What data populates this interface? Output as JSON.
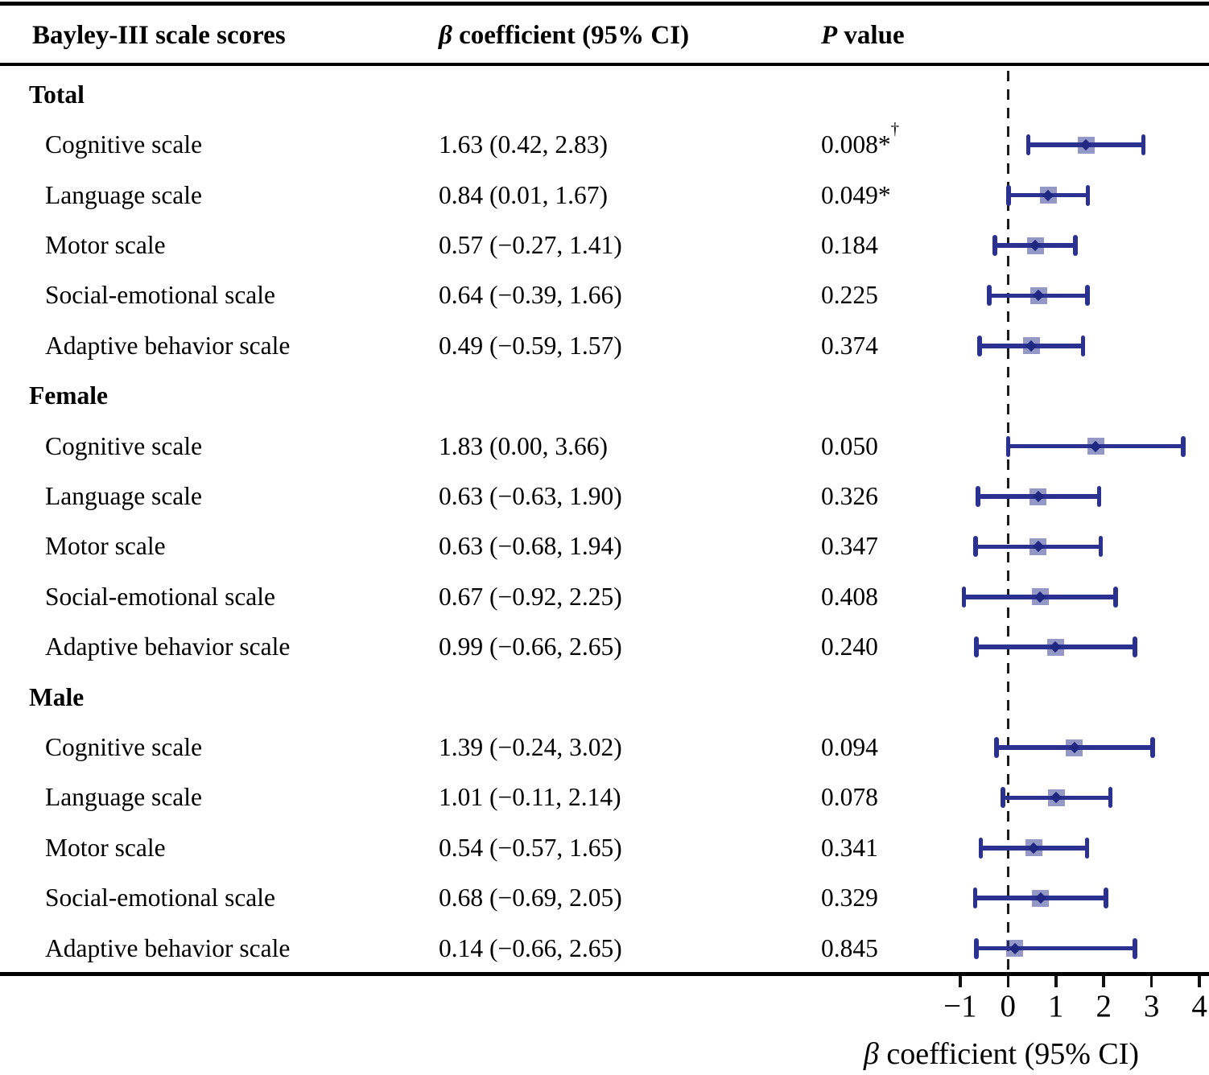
{
  "header": {
    "col1": "Bayley-III scale scores",
    "col2_italic": "β",
    "col2_rest": " coefficient (95% CI)",
    "col3_italic": "P",
    "col3_rest": " value"
  },
  "axis": {
    "label_italic": "β",
    "label_rest": " coefficient (95% CI)"
  },
  "colors": {
    "bar": "#2a3190",
    "marker_fill": "rgba(42,49,144,0.5)",
    "marker_core": "#1f2780",
    "axis": "#111111",
    "zero_line": "#1c1c1c"
  },
  "chart_data": {
    "type": "forest",
    "xlabel": "β coefficient (95% CI)",
    "zero_line": 0,
    "xlim": [
      -1.7,
      4.2
    ],
    "x_ticks": [
      {
        "v": -1,
        "label": "−1"
      },
      {
        "v": 0,
        "label": "0"
      },
      {
        "v": 1,
        "label": "1"
      },
      {
        "v": 2,
        "label": "2"
      },
      {
        "v": 3,
        "label": "3"
      },
      {
        "v": 4,
        "label": "4"
      }
    ],
    "groups": [
      {
        "label": "Total",
        "rows": [
          {
            "label": "Cognitive scale",
            "ci_text": "1.63 (0.42, 2.83)",
            "p": "0.008*",
            "p_sup": "†",
            "est": 1.63,
            "lo": 0.42,
            "hi": 2.83
          },
          {
            "label": "Language scale",
            "ci_text": "0.84 (0.01, 1.67)",
            "p": "0.049*",
            "p_sup": "",
            "est": 0.84,
            "lo": 0.01,
            "hi": 1.67
          },
          {
            "label": "Motor scale",
            "ci_text": "0.57 (−0.27, 1.41)",
            "p": "0.184",
            "p_sup": "",
            "est": 0.57,
            "lo": -0.27,
            "hi": 1.41
          },
          {
            "label": "Social-emotional scale",
            "ci_text": "0.64 (−0.39, 1.66)",
            "p": "0.225",
            "p_sup": "",
            "est": 0.64,
            "lo": -0.39,
            "hi": 1.66
          },
          {
            "label": "Adaptive behavior scale",
            "ci_text": "0.49 (−0.59, 1.57)",
            "p": "0.374",
            "p_sup": "",
            "est": 0.49,
            "lo": -0.59,
            "hi": 1.57
          }
        ]
      },
      {
        "label": "Female",
        "rows": [
          {
            "label": "Cognitive scale",
            "ci_text": "1.83 (0.00, 3.66)",
            "p": "0.050",
            "p_sup": "",
            "est": 1.83,
            "lo": 0.0,
            "hi": 3.66
          },
          {
            "label": "Language scale",
            "ci_text": "0.63 (−0.63, 1.90)",
            "p": "0.326",
            "p_sup": "",
            "est": 0.63,
            "lo": -0.63,
            "hi": 1.9
          },
          {
            "label": "Motor scale",
            "ci_text": "0.63 (−0.68, 1.94)",
            "p": "0.347",
            "p_sup": "",
            "est": 0.63,
            "lo": -0.68,
            "hi": 1.94
          },
          {
            "label": "Social-emotional scale",
            "ci_text": "0.67 (−0.92, 2.25)",
            "p": "0.408",
            "p_sup": "",
            "est": 0.67,
            "lo": -0.92,
            "hi": 2.25
          },
          {
            "label": "Adaptive behavior scale",
            "ci_text": "0.99 (−0.66, 2.65)",
            "p": "0.240",
            "p_sup": "",
            "est": 0.99,
            "lo": -0.66,
            "hi": 2.65
          }
        ]
      },
      {
        "label": "Male",
        "rows": [
          {
            "label": "Cognitive scale",
            "ci_text": "1.39 (−0.24, 3.02)",
            "p": "0.094",
            "p_sup": "",
            "est": 1.39,
            "lo": -0.24,
            "hi": 3.02
          },
          {
            "label": "Language scale",
            "ci_text": "1.01 (−0.11, 2.14)",
            "p": "0.078",
            "p_sup": "",
            "est": 1.01,
            "lo": -0.11,
            "hi": 2.14
          },
          {
            "label": "Motor scale",
            "ci_text": "0.54 (−0.57, 1.65)",
            "p": "0.341",
            "p_sup": "",
            "est": 0.54,
            "lo": -0.57,
            "hi": 1.65
          },
          {
            "label": "Social-emotional scale",
            "ci_text": "0.68 (−0.69, 2.05)",
            "p": "0.329",
            "p_sup": "",
            "est": 0.68,
            "lo": -0.69,
            "hi": 2.05
          },
          {
            "label": "Adaptive behavior scale",
            "ci_text": "0.14 (−0.66, 2.65)",
            "p": "0.845",
            "p_sup": "",
            "est": 0.14,
            "lo": -0.66,
            "hi": 2.65
          }
        ]
      }
    ]
  }
}
